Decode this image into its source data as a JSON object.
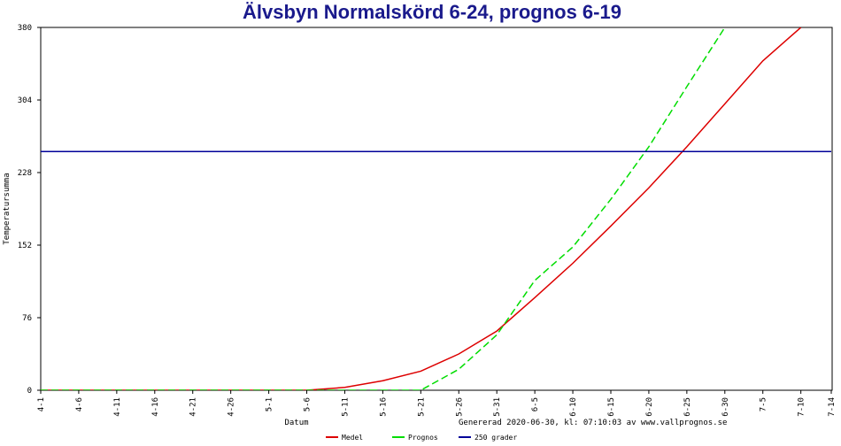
{
  "chart_data": {
    "type": "line",
    "title": "Älvsbyn Normalskörd 6-24, prognos 6-19",
    "xlabel": "Datum",
    "ylabel": "Temperatursumma",
    "annotation": "Genererad 2020-06-30, kl: 07:10:03 av www.vallprognos.se",
    "x": [
      "4-1",
      "4-6",
      "4-11",
      "4-16",
      "4-21",
      "4-26",
      "5-1",
      "5-6",
      "5-11",
      "5-16",
      "5-21",
      "5-26",
      "5-31",
      "6-5",
      "6-10",
      "6-15",
      "6-20",
      "6-25",
      "6-30",
      "7-5",
      "7-10",
      "7-14"
    ],
    "series": [
      {
        "name": "Medel",
        "color": "#dd0000",
        "dash": false,
        "values": [
          0,
          0,
          0,
          0,
          0,
          0,
          0,
          0,
          3,
          10,
          20,
          38,
          62,
          97,
          133,
          172,
          212,
          255,
          300,
          345,
          380,
          null
        ]
      },
      {
        "name": "Prognos",
        "color": "#00dd00",
        "dash": true,
        "values": [
          0,
          0,
          0,
          0,
          0,
          0,
          0,
          0,
          0,
          0,
          0,
          22,
          58,
          115,
          150,
          200,
          255,
          318,
          380,
          null,
          null,
          null
        ]
      },
      {
        "name": "250 grader",
        "color": "#000099",
        "dash": false,
        "values": [
          250,
          250,
          250,
          250,
          250,
          250,
          250,
          250,
          250,
          250,
          250,
          250,
          250,
          250,
          250,
          250,
          250,
          250,
          250,
          250,
          250,
          250
        ]
      }
    ],
    "ylim": [
      0,
      380
    ],
    "yticks": [
      0,
      76,
      152,
      228,
      304,
      380
    ]
  }
}
